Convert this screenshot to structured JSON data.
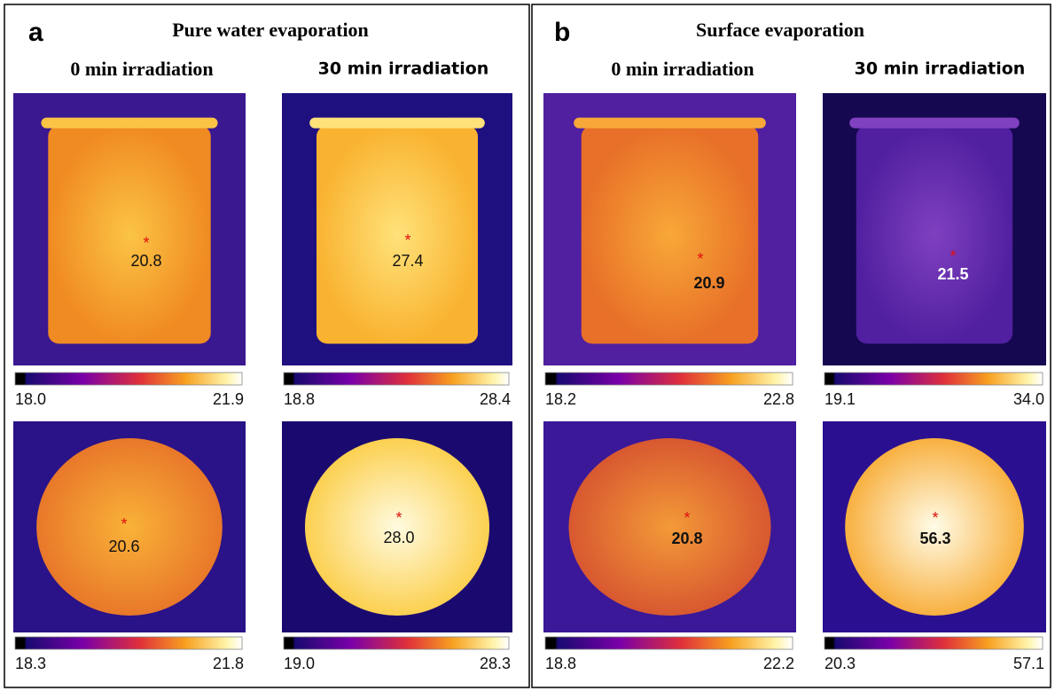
{
  "panels": [
    {
      "label": "a",
      "title": "Pure water evaporation",
      "columns": [
        "0 min irradiation",
        "30 min irradiation"
      ],
      "images": [
        {
          "temperature": "20.8",
          "scale_min": "18.0",
          "scale_max": "21.9"
        },
        {
          "temperature": "27.4",
          "scale_min": "18.8",
          "scale_max": "28.4"
        },
        {
          "temperature": "20.6",
          "scale_min": "18.3",
          "scale_max": "21.8"
        },
        {
          "temperature": "28.0",
          "scale_min": "19.0",
          "scale_max": "28.3"
        }
      ]
    },
    {
      "label": "b",
      "title": "Surface evaporation",
      "columns": [
        "0 min irradiation",
        "30 min irradiation"
      ],
      "images": [
        {
          "temperature": "20.9",
          "scale_min": "18.2",
          "scale_max": "22.8"
        },
        {
          "temperature": "21.5",
          "scale_min": "19.1",
          "scale_max": "34.0"
        },
        {
          "temperature": "20.8",
          "scale_min": "18.8",
          "scale_max": "22.2"
        },
        {
          "temperature": "56.3",
          "scale_min": "20.3",
          "scale_max": "57.1"
        }
      ]
    }
  ]
}
